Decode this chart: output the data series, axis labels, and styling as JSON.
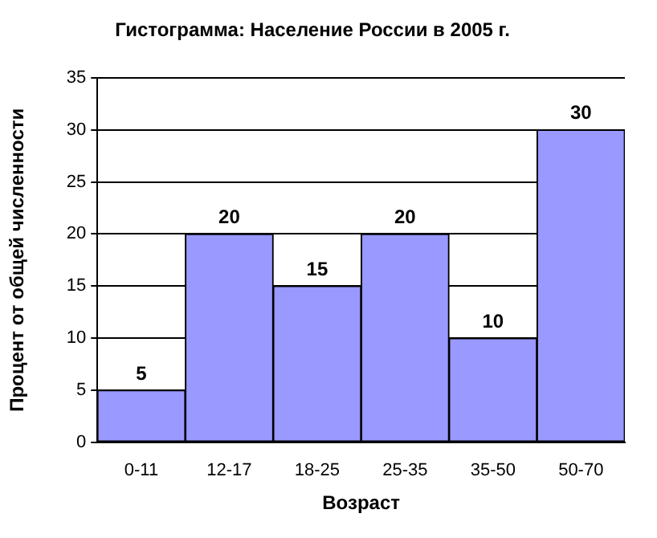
{
  "chart_data": {
    "type": "bar",
    "title": "Гистограмма: Население России в 2005 г.",
    "xlabel": "Возраст",
    "ylabel": "Процент от общей численности",
    "categories": [
      "0-11",
      "12-17",
      "18-25",
      "25-35",
      "35-50",
      "50-70"
    ],
    "values": [
      5,
      20,
      15,
      20,
      10,
      30
    ],
    "color": "#9999ff",
    "ylim": [
      0,
      35
    ],
    "yticks": [
      0,
      5,
      10,
      15,
      20,
      25,
      30,
      35
    ],
    "grid": "y",
    "data_labels": true,
    "legend": false
  }
}
